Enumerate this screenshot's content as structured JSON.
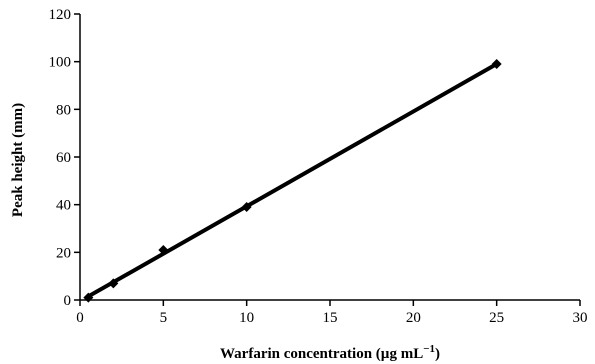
{
  "chart_data": {
    "type": "scatter",
    "xlabel_main": "Warfarin concentration (µg mL",
    "xlabel_sup": "−1",
    "xlabel_close": ")",
    "ylabel": "Peak height (mm)",
    "xlim": [
      0,
      30
    ],
    "ylim": [
      0,
      120
    ],
    "xticks": [
      0,
      5,
      10,
      15,
      20,
      25,
      30
    ],
    "yticks": [
      0,
      20,
      40,
      60,
      80,
      100,
      120
    ],
    "grid": false,
    "points": [
      {
        "x": 0.5,
        "y": 1
      },
      {
        "x": 2,
        "y": 7
      },
      {
        "x": 5,
        "y": 21
      },
      {
        "x": 10,
        "y": 39
      },
      {
        "x": 25,
        "y": 99
      }
    ],
    "fit_line": {
      "x": [
        0.5,
        25
      ],
      "y": [
        1.5,
        99
      ]
    },
    "colors": {
      "marker": "#000000",
      "line": "#000000",
      "axis": "#000000"
    }
  }
}
